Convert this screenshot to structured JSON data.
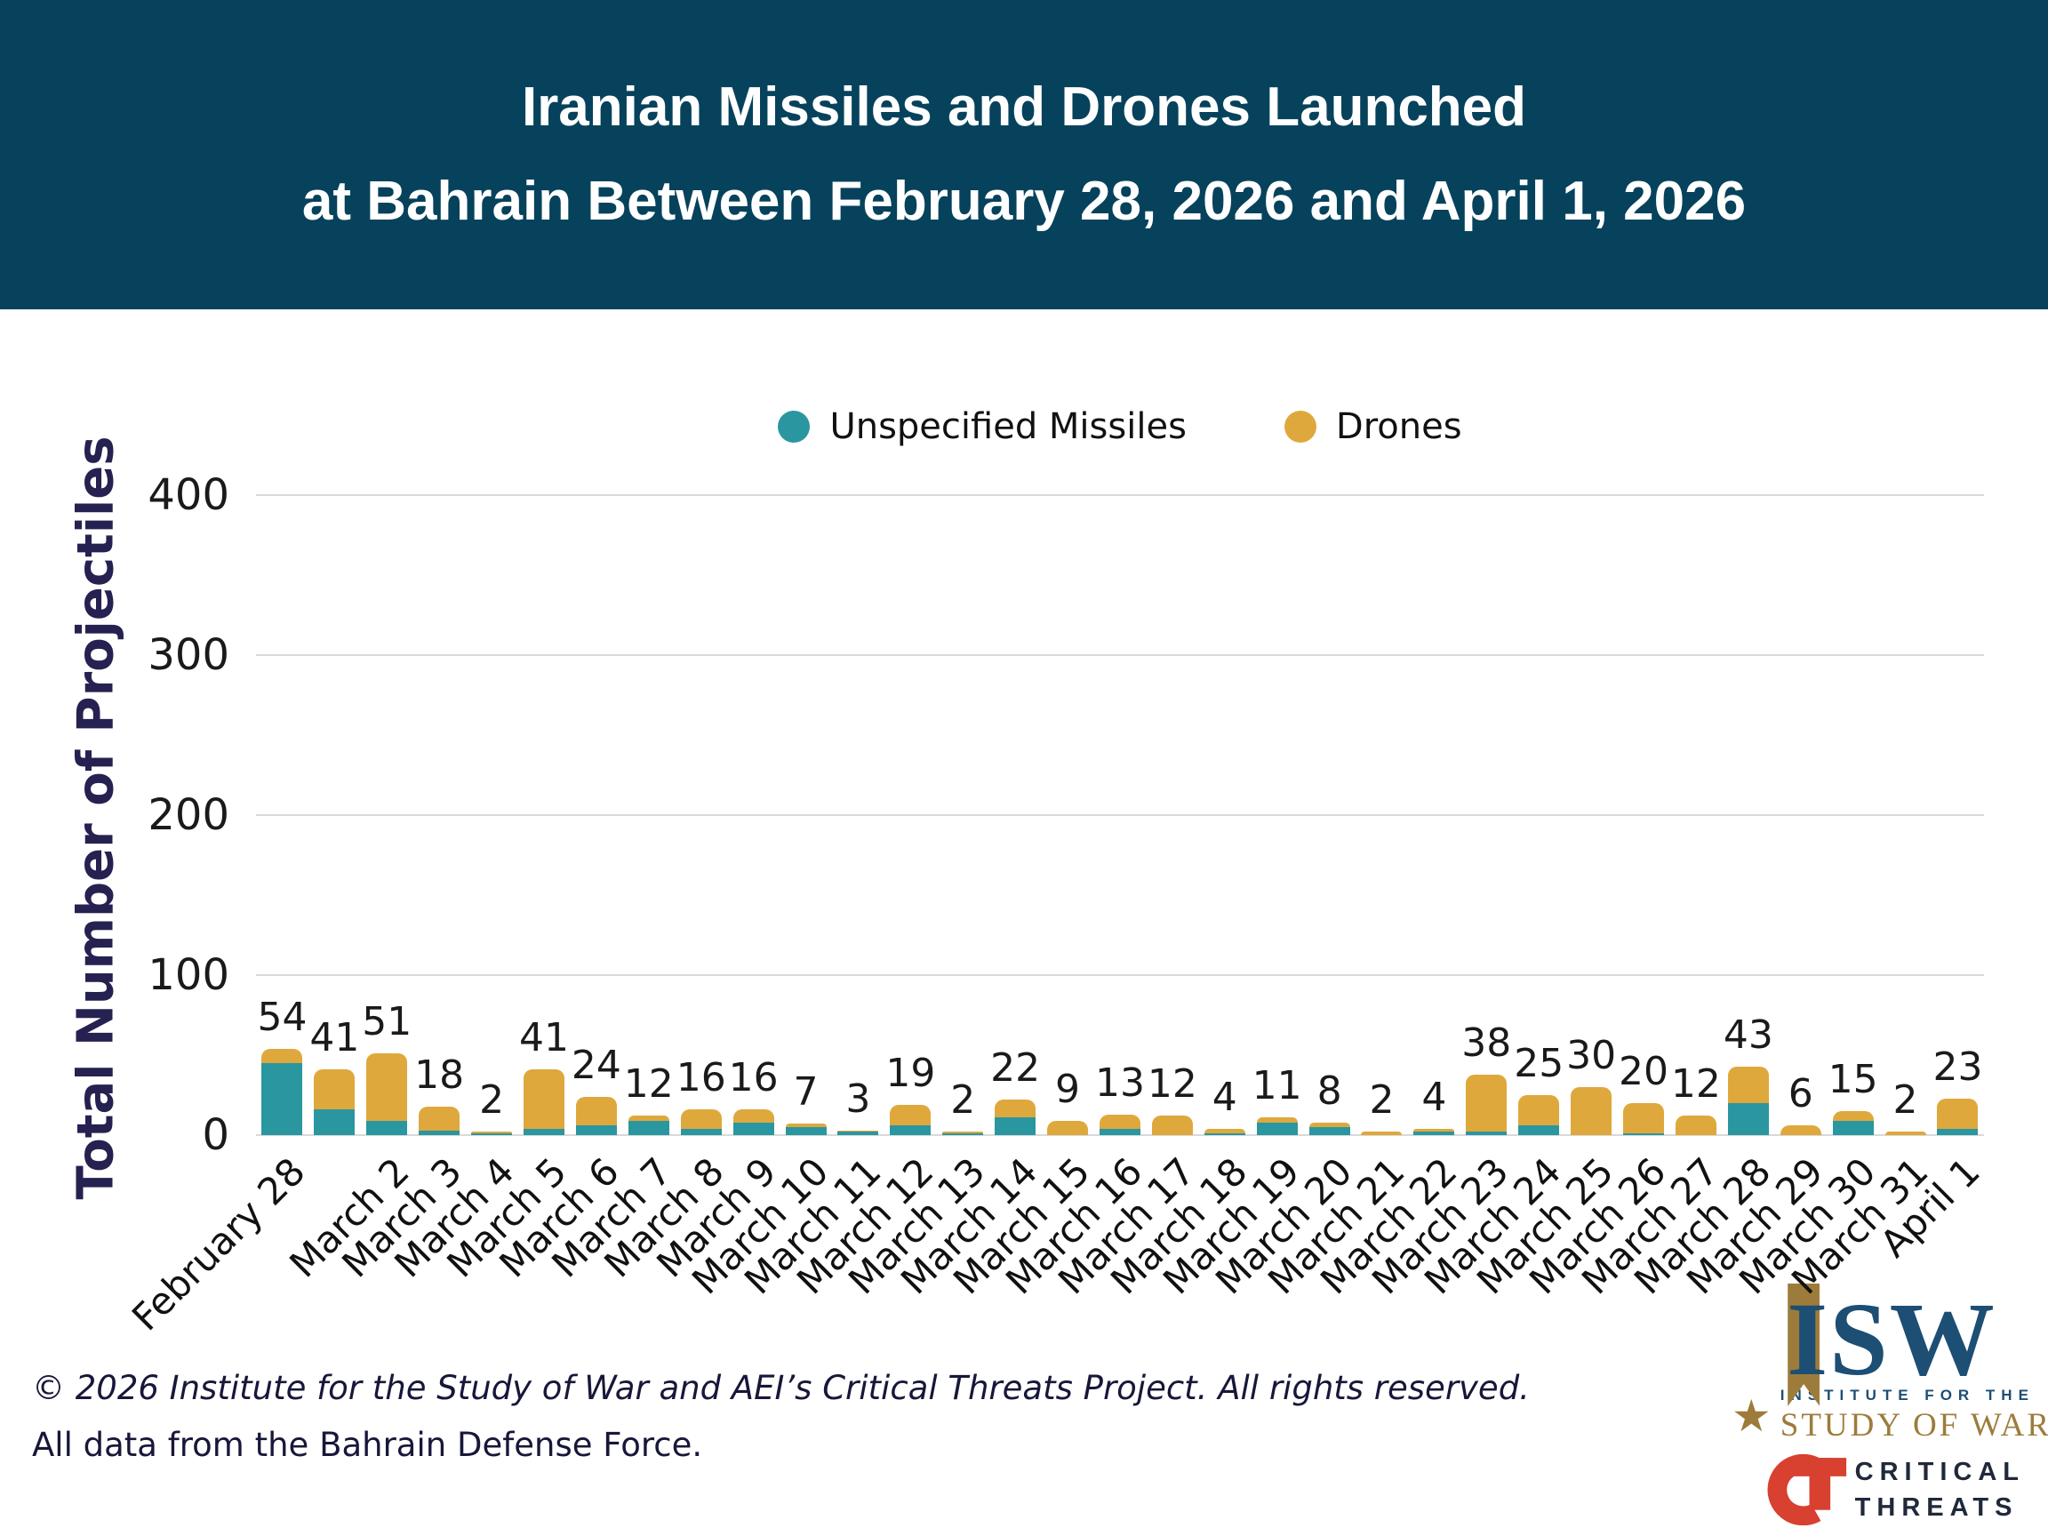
{
  "header": {
    "title_line1": "Iranian Missiles and Drones Launched",
    "title_line2": "at Bahrain Between February 28, 2026 and April 1, 2026"
  },
  "legend": [
    {
      "label": "Unspecified Missiles",
      "color": "#2a96a0"
    },
    {
      "label": "Drones",
      "color": "#dfa83c"
    }
  ],
  "chart_data": {
    "type": "bar",
    "stacked": true,
    "title": "Iranian Missiles and Drones Launched at Bahrain Between February 28, 2026 and April 1, 2026",
    "ylabel": "Total Number of Projectiles",
    "xlabel": "",
    "ylim": [
      0,
      400
    ],
    "yticks": [
      0,
      100,
      200,
      300,
      400
    ],
    "grid": true,
    "legend_position": "top",
    "categories": [
      "February 28",
      "",
      "March 2",
      "March 3",
      "March 4",
      "March 5",
      "March 6",
      "March 7",
      "March 8",
      "March 9",
      "March 10",
      "March 11",
      "March 12",
      "March 13",
      "March 14",
      "March 15",
      "March 16",
      "March 17",
      "March 18",
      "March 19",
      "March 20",
      "March 21",
      "March 22",
      "March 23",
      "March 24",
      "March 25",
      "March 26",
      "March 27",
      "March 28",
      "March 29",
      "March 30",
      "March 31",
      "April 1"
    ],
    "series": [
      {
        "name": "Unspecified Missiles",
        "color": "#2a96a0",
        "values": [
          45,
          16,
          9,
          3,
          1,
          4,
          6,
          9,
          4,
          8,
          5,
          2,
          6,
          1,
          11,
          0,
          4,
          0,
          1,
          8,
          5,
          0,
          2,
          2,
          6,
          0,
          1,
          0,
          20,
          0,
          9,
          0,
          4
        ]
      },
      {
        "name": "Drones",
        "color": "#dfa83c",
        "values": [
          9,
          25,
          42,
          15,
          1,
          37,
          18,
          3,
          12,
          8,
          2,
          1,
          13,
          1,
          11,
          9,
          9,
          12,
          3,
          3,
          3,
          2,
          2,
          36,
          19,
          30,
          19,
          12,
          23,
          6,
          6,
          2,
          19
        ]
      }
    ],
    "totals": [
      54,
      41,
      51,
      18,
      2,
      41,
      24,
      12,
      16,
      16,
      7,
      3,
      19,
      2,
      22,
      9,
      13,
      12,
      4,
      11,
      8,
      2,
      4,
      38,
      25,
      30,
      20,
      12,
      43,
      6,
      15,
      2,
      23
    ]
  },
  "footer": {
    "line1": "© 2026 Institute for the Study of War and AEI’s Critical Threats Project. All rights reserved.",
    "line2": "All data from the Bahrain Defense Force."
  },
  "logos": {
    "isw": {
      "acronym": "ISW",
      "star": "★",
      "line1": "INSTITUTE FOR THE",
      "line2": "STUDY OF WAR",
      "navy": "#1d4e74",
      "gold": "#9d7c3b"
    },
    "ct": {
      "monogram": "CT",
      "line1": "CRITICAL",
      "line2": "THREATS",
      "red": "#d8402f",
      "dark": "#20293a"
    }
  },
  "colors": {
    "banner_background": "#07425c",
    "missiles_teal": "#2a96a0",
    "drones_gold": "#dfa83c",
    "gridline_gray": "#d9d9d9",
    "axis_text": "#1a1a1a",
    "y_axis_title": "#252150",
    "footer_text": "#17173a"
  }
}
